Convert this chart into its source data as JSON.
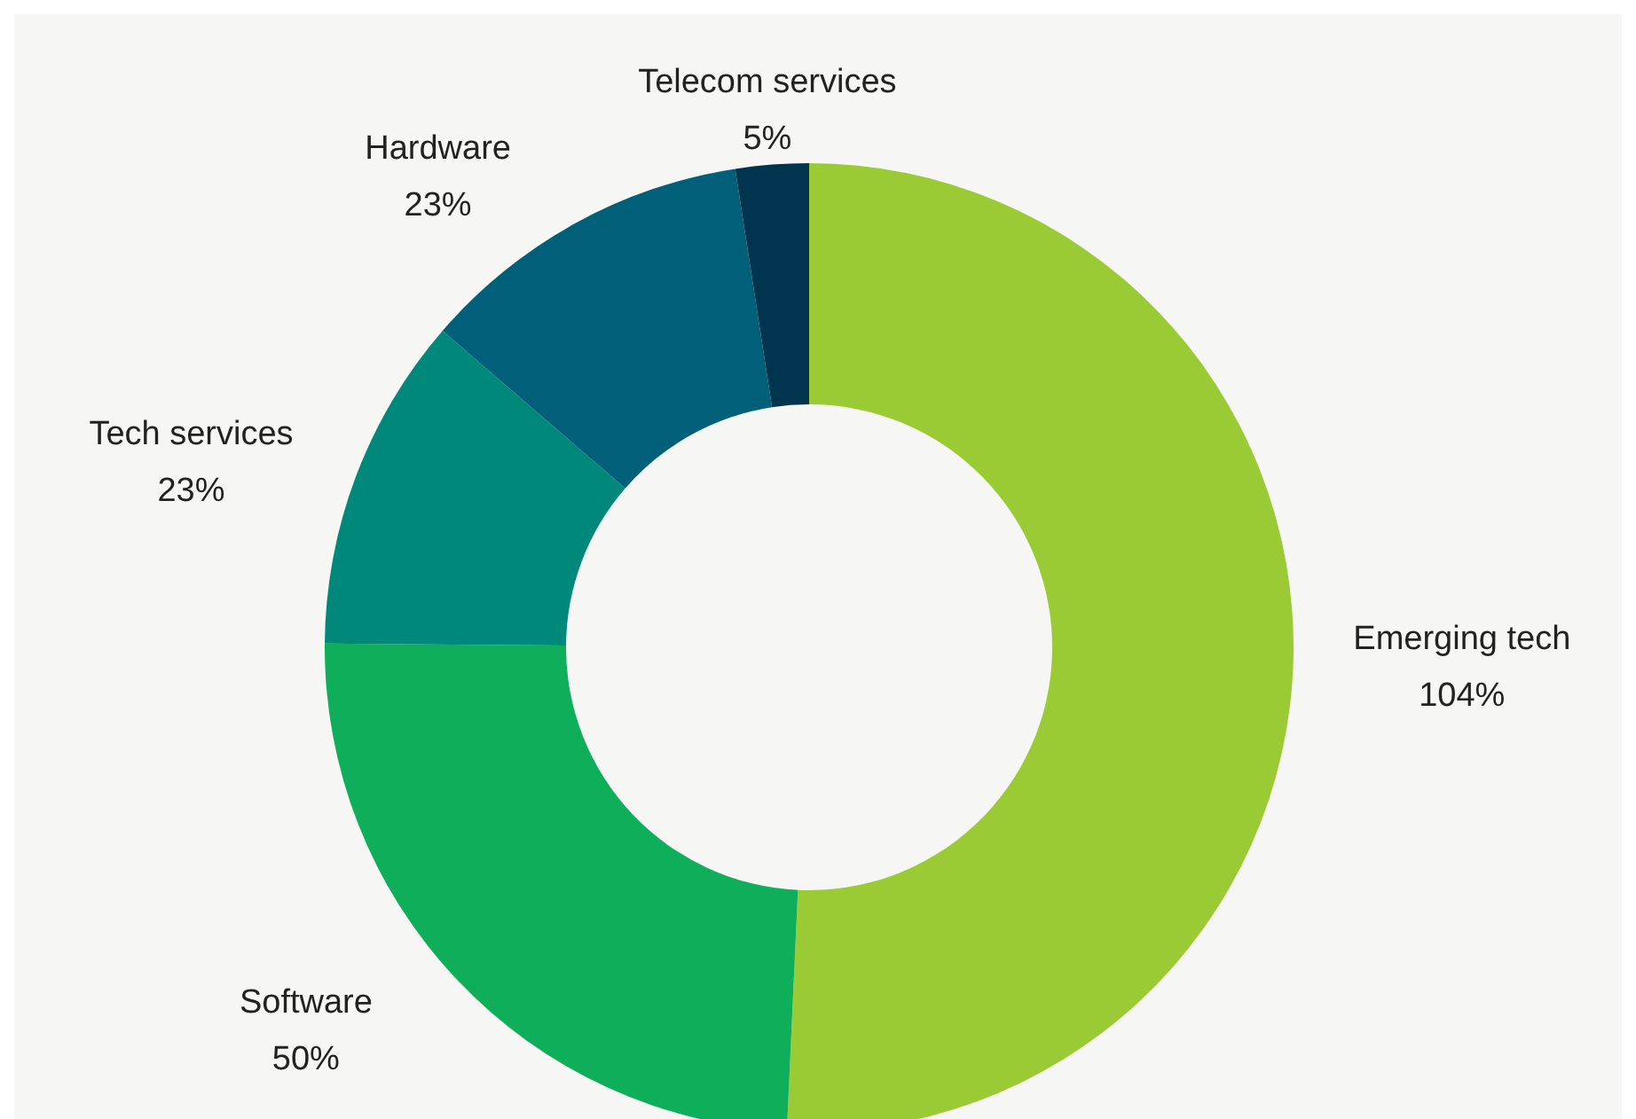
{
  "chart_data": {
    "type": "donut",
    "categories": [
      "Emerging tech",
      "Software",
      "Tech services",
      "Hardware",
      "Telecom services"
    ],
    "values": [
      104,
      50,
      23,
      23,
      5
    ],
    "value_labels": [
      "104%",
      "50%",
      "23%",
      "23%",
      "5%"
    ],
    "colors": [
      "#9acb34",
      "#0fae5b",
      "#00897b",
      "#00607a",
      "#00344f"
    ]
  }
}
